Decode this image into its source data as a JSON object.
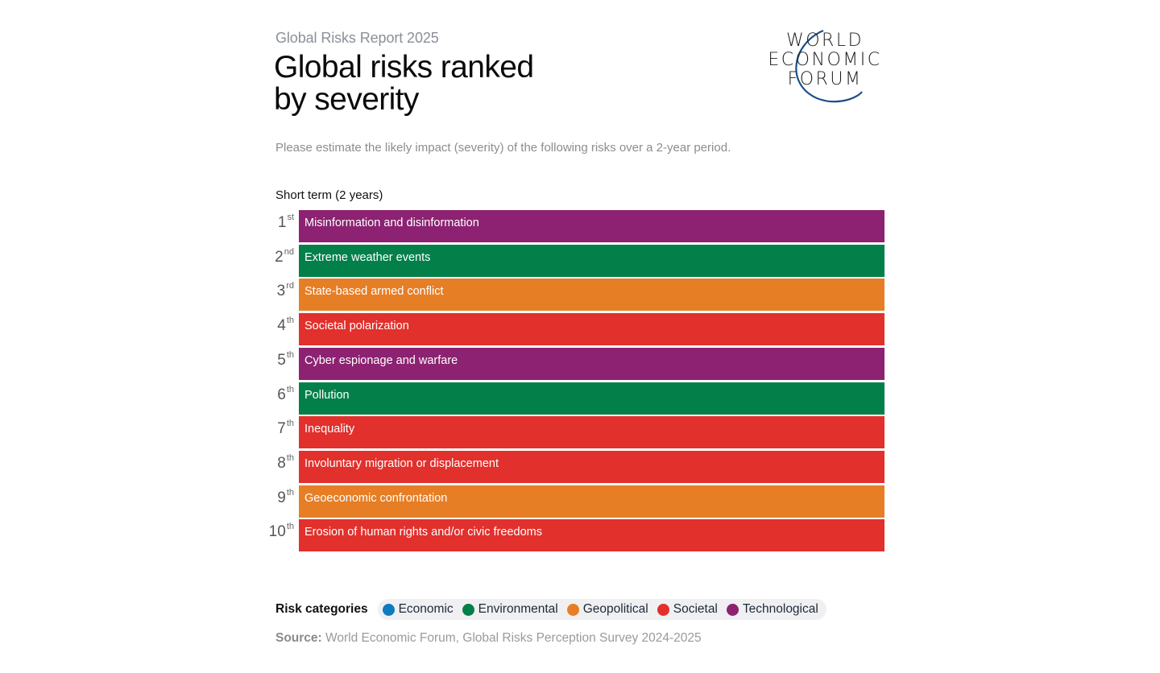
{
  "header": {
    "report_label": "Global Risks Report 2025",
    "title_line1": "Global risks ranked",
    "title_line2": "by severity",
    "logo_lines": [
      "WORLD",
      "ECONOMIC",
      "FORUM"
    ],
    "logo_arc_color": "#1a4f8b"
  },
  "subtitle": "Please estimate the likely impact (severity) of the following risks over a 2-year period.",
  "section_label": "Short term (2 years)",
  "categories": {
    "Economic": "#0f7ac0",
    "Environmental": "#03804a",
    "Geopolitical": "#e67e26",
    "Societal": "#e2302c",
    "Technological": "#8c2271"
  },
  "chart_data": {
    "type": "table",
    "title": "Global risks ranked by severity",
    "subtitle": "Short term (2 years)",
    "rows": [
      {
        "rank": "1",
        "suffix": "st",
        "risk": "Misinformation and disinformation",
        "category": "Technological"
      },
      {
        "rank": "2",
        "suffix": "nd",
        "risk": "Extreme weather events",
        "category": "Environmental"
      },
      {
        "rank": "3",
        "suffix": "rd",
        "risk": "State-based armed conflict",
        "category": "Geopolitical"
      },
      {
        "rank": "4",
        "suffix": "th",
        "risk": "Societal polarization",
        "category": "Societal"
      },
      {
        "rank": "5",
        "suffix": "th",
        "risk": "Cyber espionage and warfare",
        "category": "Technological"
      },
      {
        "rank": "6",
        "suffix": "th",
        "risk": "Pollution",
        "category": "Environmental"
      },
      {
        "rank": "7",
        "suffix": "th",
        "risk": "Inequality",
        "category": "Societal"
      },
      {
        "rank": "8",
        "suffix": "th",
        "risk": "Involuntary migration or displacement",
        "category": "Societal"
      },
      {
        "rank": "9",
        "suffix": "th",
        "risk": "Geoeconomic confrontation",
        "category": "Geopolitical"
      },
      {
        "rank": "10",
        "suffix": "th",
        "risk": "Erosion of human rights and/or civic freedoms",
        "category": "Societal"
      }
    ],
    "legend_position": "bottom-left"
  },
  "legend": {
    "title": "Risk categories",
    "items": [
      "Economic",
      "Environmental",
      "Geopolitical",
      "Societal",
      "Technological"
    ]
  },
  "source": {
    "label": "Source:",
    "text": " World Economic Forum, Global Risks Perception Survey 2024-2025"
  }
}
